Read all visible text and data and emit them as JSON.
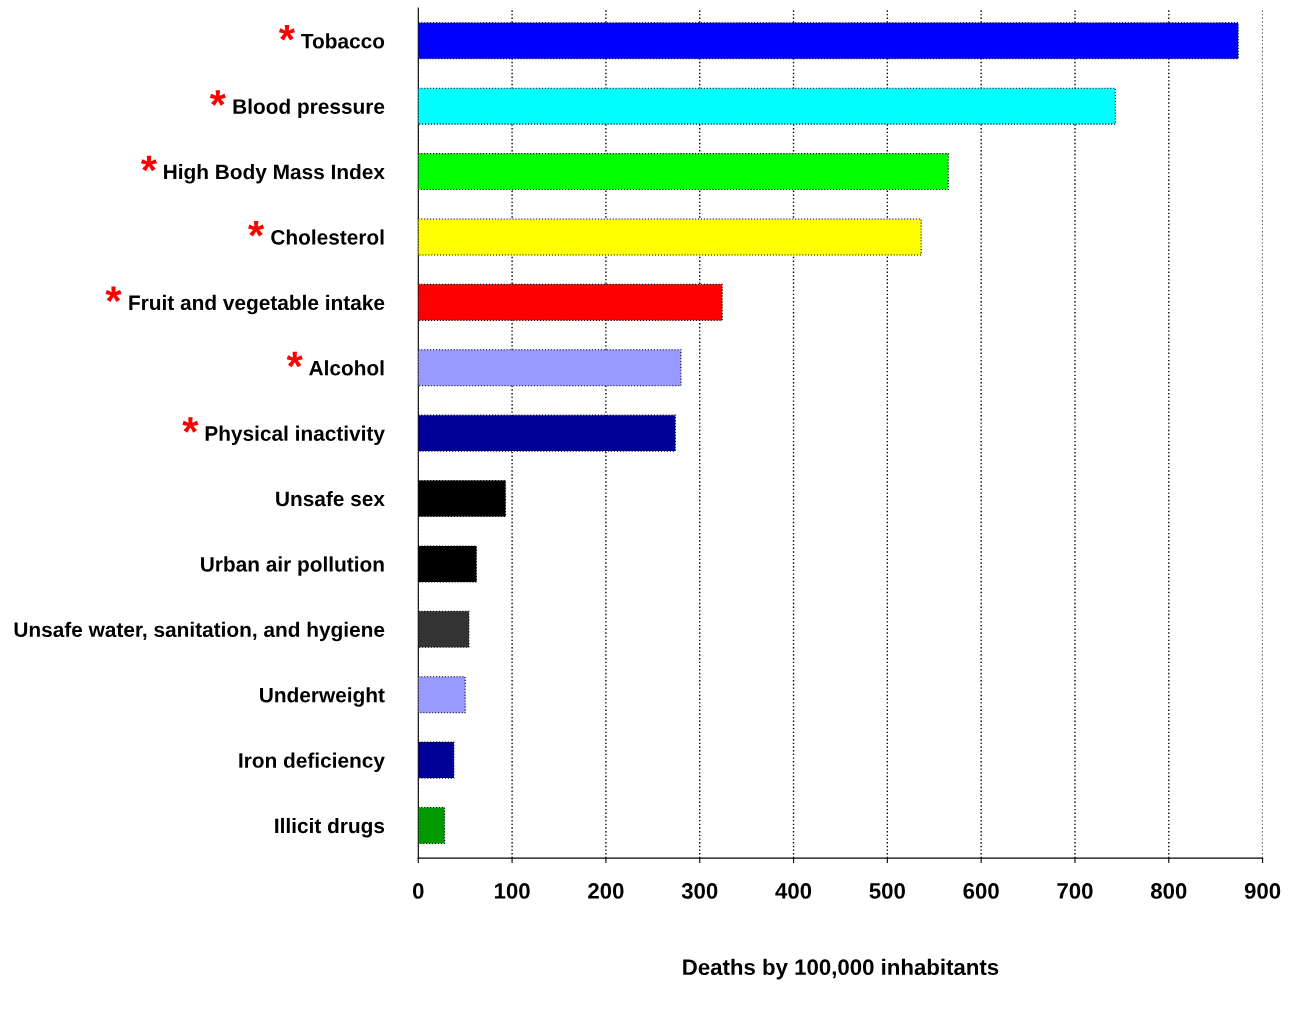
{
  "chart_data": {
    "type": "bar",
    "orientation": "horizontal",
    "xlabel": "Deaths by 100,000 inhabitants",
    "categories": [
      "Tobacco",
      "Blood pressure",
      "High Body Mass Index",
      "Cholesterol",
      "Fruit and vegetable intake",
      "Alcohol",
      "Physical inactivity",
      "Unsafe sex",
      "Urban air pollution",
      "Unsafe water, sanitation, and hygiene",
      "Underweight",
      "Iron deficiency",
      "Illicit drugs"
    ],
    "values": [
      874,
      743,
      565,
      536,
      324,
      280,
      274,
      93,
      62,
      54,
      50,
      38,
      28
    ],
    "colors": [
      "#0000ff",
      "#00ffff",
      "#00ff00",
      "#ffff00",
      "#ff0000",
      "#9999ff",
      "#000099",
      "#000000",
      "#000000",
      "#333333",
      "#9999ff",
      "#000099",
      "#009900"
    ],
    "xlim": [
      0,
      900
    ],
    "xticks": [
      0,
      100,
      200,
      300,
      400,
      500,
      600,
      700,
      800,
      900
    ],
    "grid": "x",
    "legend": false,
    "annotations": [
      "*",
      "*",
      "*",
      "*",
      "*",
      "*",
      "*"
    ]
  }
}
